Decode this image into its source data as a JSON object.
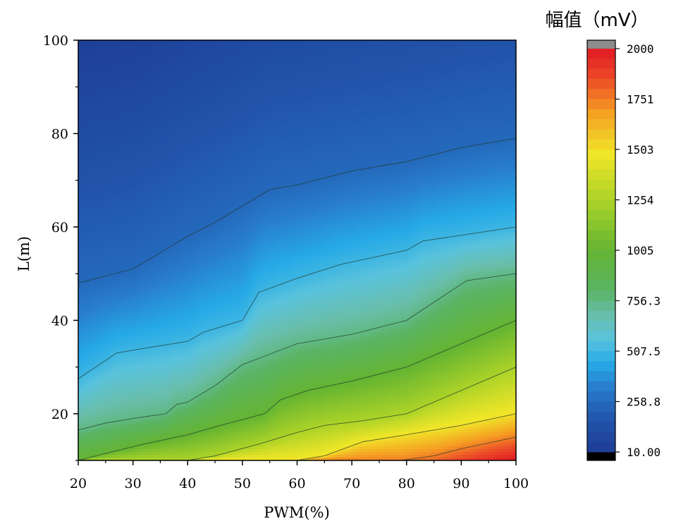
{
  "chart_data": {
    "type": "heatmap",
    "title": "",
    "xlabel": "PWM(%)",
    "ylabel": "L(m)",
    "xlim": [
      20,
      100
    ],
    "ylim": [
      10,
      100
    ],
    "x_ticks": [
      "20",
      "30",
      "40",
      "50",
      "60",
      "70",
      "80",
      "90",
      "100"
    ],
    "y_ticks": [
      "20",
      "40",
      "60",
      "80",
      "100"
    ],
    "colorbar": {
      "title": "幅值（mV）",
      "range": [
        10.0,
        2000
      ],
      "tick_labels": [
        "2000",
        "1751",
        "1503",
        "1254",
        "1005",
        "756.3",
        "507.5",
        "258.8",
        "10.00"
      ],
      "tick_values": [
        2000,
        1751,
        1503,
        1254,
        1005,
        756.3,
        507.5,
        258.8,
        10.0
      ],
      "over_color": "#8c8c8c",
      "under_color": "#000000"
    },
    "contour_lines": [
      {
        "level": 250,
        "points": [
          [
            20,
            48
          ],
          [
            30,
            51
          ],
          [
            40,
            58
          ],
          [
            45,
            61
          ],
          [
            55,
            68
          ],
          [
            60,
            69
          ],
          [
            70,
            72
          ],
          [
            80,
            74
          ],
          [
            90,
            77
          ],
          [
            100,
            79
          ]
        ]
      },
      {
        "level": 500,
        "points": [
          [
            20,
            27.5
          ],
          [
            27,
            33
          ],
          [
            32,
            34
          ],
          [
            40,
            35.5
          ],
          [
            43,
            37.5
          ],
          [
            50,
            40
          ],
          [
            53,
            46
          ],
          [
            60,
            49
          ],
          [
            68,
            52
          ],
          [
            80,
            55
          ],
          [
            83,
            57
          ],
          [
            100,
            60
          ]
        ]
      },
      {
        "level": 750,
        "points": [
          [
            20,
            16.5
          ],
          [
            25,
            18
          ],
          [
            30,
            19
          ],
          [
            36,
            20
          ],
          [
            38,
            22
          ],
          [
            40,
            22.5
          ],
          [
            45,
            26
          ],
          [
            50,
            30.5
          ],
          [
            60,
            35
          ],
          [
            70,
            37
          ],
          [
            80,
            40
          ],
          [
            91,
            48.5
          ],
          [
            100,
            50
          ]
        ]
      },
      {
        "level": 1000,
        "points": [
          [
            20,
            10
          ],
          [
            25,
            11.5
          ],
          [
            32,
            13.5
          ],
          [
            40,
            15.5
          ],
          [
            46,
            17.5
          ],
          [
            54,
            20
          ],
          [
            57,
            23
          ],
          [
            62,
            25
          ],
          [
            70,
            27
          ],
          [
            80,
            30
          ],
          [
            90,
            35
          ],
          [
            100,
            40
          ]
        ]
      },
      {
        "level": 1250,
        "points": [
          [
            40,
            10
          ],
          [
            45,
            11
          ],
          [
            53,
            13.5
          ],
          [
            60,
            16
          ],
          [
            65,
            17.5
          ],
          [
            72,
            18.5
          ],
          [
            80,
            20
          ],
          [
            90,
            25
          ],
          [
            100,
            30
          ]
        ]
      },
      {
        "level": 1500,
        "points": [
          [
            60,
            10
          ],
          [
            65,
            11
          ],
          [
            72,
            14
          ],
          [
            80,
            15.5
          ],
          [
            90,
            17.5
          ],
          [
            100,
            20
          ]
        ]
      },
      {
        "level": 1750,
        "points": [
          [
            79,
            10
          ],
          [
            85,
            11
          ],
          [
            90,
            12.5
          ],
          [
            100,
            15
          ]
        ]
      }
    ]
  }
}
